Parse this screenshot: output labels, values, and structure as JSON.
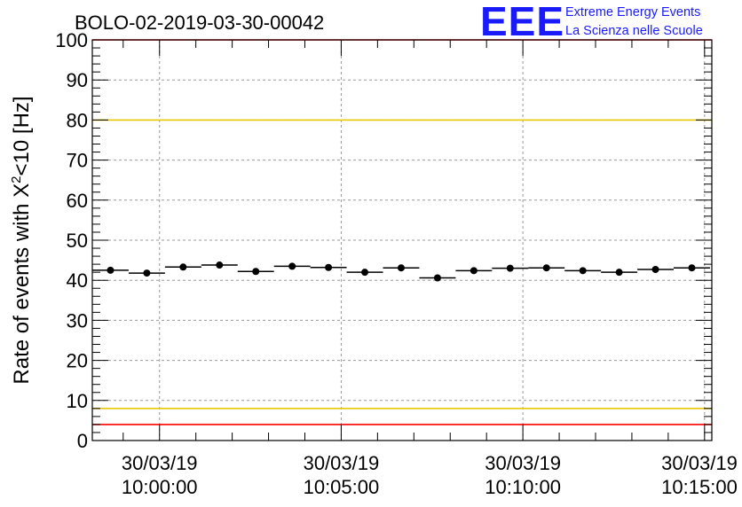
{
  "chart_data": {
    "type": "scatter",
    "title": "BOLO-02-2019-03-30-00042",
    "xlabel": "",
    "ylabel_main": "Rate of events with X",
    "ylabel_sup": "2",
    "ylabel_tail": "<10 [Hz]",
    "ylim": [
      0,
      100
    ],
    "yticks": [
      0,
      10,
      20,
      30,
      40,
      50,
      60,
      70,
      80,
      90,
      100
    ],
    "xlim_minutes": [
      -1.85,
      15.2
    ],
    "xticks": [
      {
        "minute": 0,
        "date": "30/03/19",
        "time": "10:00:00"
      },
      {
        "minute": 5,
        "date": "30/03/19",
        "time": "10:05:00"
      },
      {
        "minute": 10,
        "date": "30/03/19",
        "time": "10:10:00"
      },
      {
        "minute": 15,
        "date": "30/03/19",
        "time": "10:15:00"
      }
    ],
    "bin_width_minutes": 1,
    "x": [
      -1.35,
      -0.35,
      0.65,
      1.65,
      2.65,
      3.65,
      4.65,
      5.65,
      6.65,
      7.65,
      8.65,
      9.65,
      10.65,
      11.65,
      12.65,
      13.65,
      14.65
    ],
    "values": [
      42.5,
      41.8,
      43.3,
      43.8,
      42.2,
      43.5,
      43.2,
      42.0,
      43.1,
      40.6,
      42.4,
      43.0,
      43.1,
      42.4,
      42.0,
      42.7,
      43.1
    ],
    "reference_lines": [
      {
        "value": 4,
        "color": "#ff0000"
      },
      {
        "value": 8,
        "color": "#e8c800"
      },
      {
        "value": 80,
        "color": "#e8c800"
      },
      {
        "value": 100,
        "color": "#ff0000"
      }
    ],
    "grid": true,
    "marker_color": "#000000"
  },
  "logo": {
    "mark": "EEE",
    "line1": "Extreme Energy Events",
    "line2": "La Scienza nelle Scuole",
    "color": "#1a1aff"
  }
}
